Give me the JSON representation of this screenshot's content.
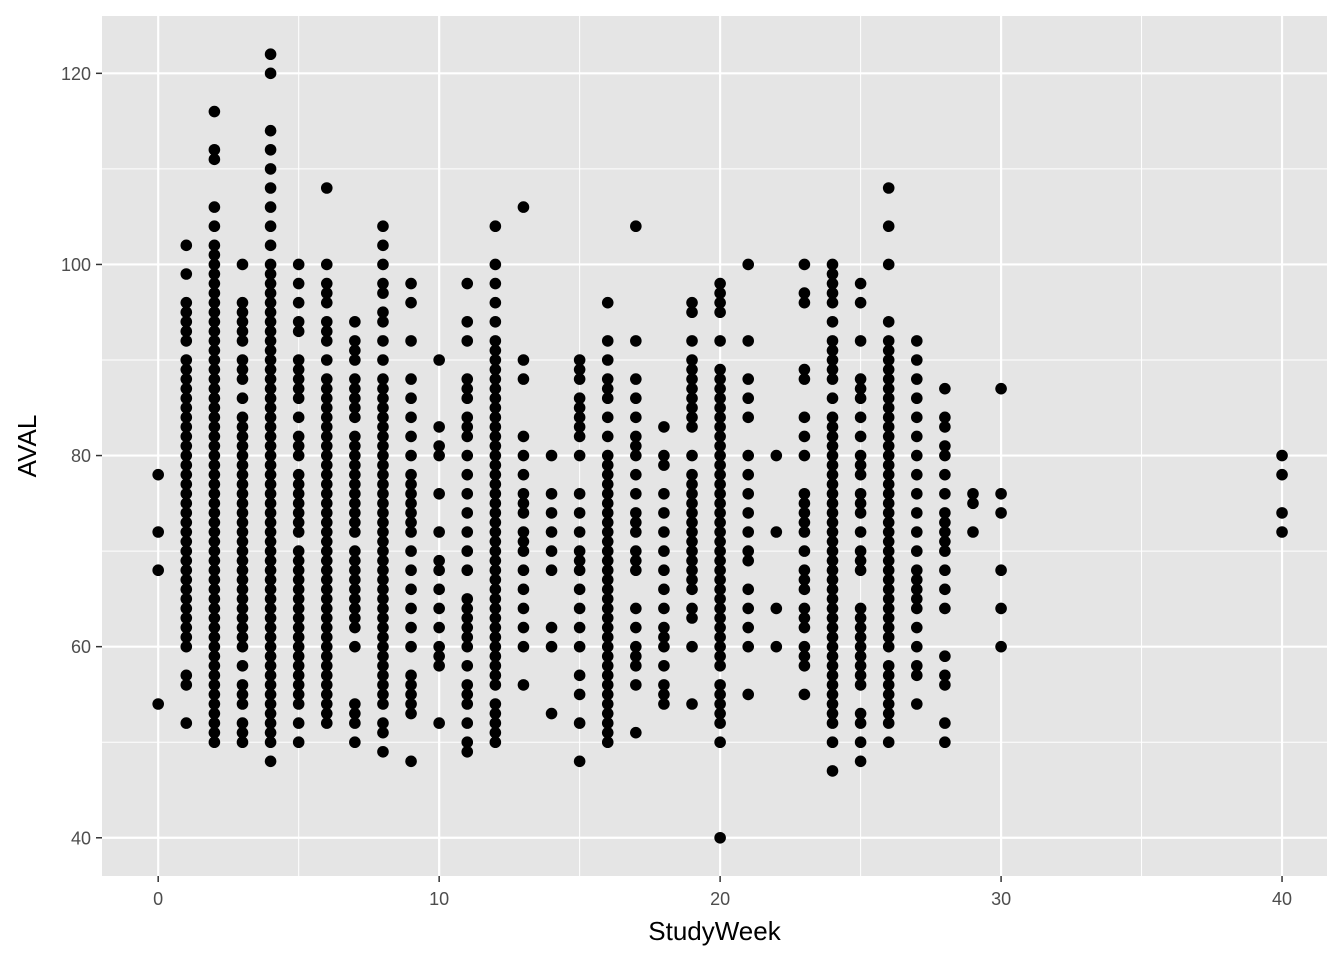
{
  "chart_data": {
    "type": "scatter",
    "xlabel": "StudyWeek",
    "ylabel": "AVAL",
    "xlim": [
      -2,
      41.6
    ],
    "ylim": [
      36,
      126
    ],
    "xticks": [
      0,
      10,
      20,
      30,
      40
    ],
    "yticks": [
      40,
      60,
      80,
      100,
      120
    ],
    "xtick_labels": [
      "0",
      "10",
      "20",
      "30",
      "40"
    ],
    "ytick_labels": [
      "40",
      "60",
      "80",
      "100",
      "120"
    ],
    "grid": true,
    "colors": {
      "panel": "#e5e5e5",
      "grid": "#ffffff",
      "point": "#000000"
    },
    "points": [
      {
        "x": 0,
        "y": [
          54,
          68,
          72,
          78
        ]
      },
      {
        "x": 1,
        "y": [
          52,
          56,
          57,
          60,
          61,
          62,
          63,
          64,
          65,
          66,
          67,
          68,
          69,
          70,
          71,
          72,
          73,
          74,
          75,
          76,
          77,
          78,
          79,
          80,
          81,
          82,
          83,
          84,
          85,
          86,
          87,
          88,
          89,
          90,
          92,
          93,
          94,
          95,
          96,
          99,
          102
        ]
      },
      {
        "x": 2,
        "y": [
          50,
          51,
          52,
          53,
          54,
          55,
          56,
          57,
          58,
          59,
          60,
          61,
          62,
          63,
          64,
          65,
          66,
          67,
          68,
          69,
          70,
          71,
          72,
          73,
          74,
          75,
          76,
          77,
          78,
          79,
          80,
          81,
          82,
          83,
          84,
          85,
          86,
          87,
          88,
          89,
          90,
          91,
          92,
          93,
          94,
          95,
          96,
          97,
          98,
          99,
          100,
          101,
          102,
          104,
          106,
          111,
          112,
          116
        ]
      },
      {
        "x": 3,
        "y": [
          50,
          51,
          52,
          54,
          55,
          56,
          58,
          60,
          61,
          62,
          63,
          64,
          65,
          66,
          67,
          68,
          69,
          70,
          71,
          72,
          73,
          74,
          75,
          76,
          77,
          78,
          79,
          80,
          81,
          82,
          83,
          84,
          86,
          88,
          89,
          90,
          92,
          93,
          94,
          95,
          96,
          100
        ]
      },
      {
        "x": 4,
        "y": [
          48,
          50,
          51,
          52,
          53,
          54,
          55,
          56,
          57,
          58,
          59,
          60,
          61,
          62,
          63,
          64,
          65,
          66,
          67,
          68,
          69,
          70,
          71,
          72,
          73,
          74,
          75,
          76,
          77,
          78,
          79,
          80,
          81,
          82,
          83,
          84,
          85,
          86,
          87,
          88,
          89,
          90,
          91,
          92,
          93,
          94,
          95,
          96,
          97,
          98,
          99,
          100,
          102,
          104,
          106,
          108,
          110,
          112,
          114,
          120,
          122
        ]
      },
      {
        "x": 5,
        "y": [
          50,
          52,
          54,
          55,
          56,
          57,
          58,
          59,
          60,
          61,
          62,
          63,
          64,
          65,
          66,
          67,
          68,
          69,
          70,
          72,
          73,
          74,
          75,
          76,
          77,
          78,
          80,
          81,
          82,
          84,
          86,
          87,
          88,
          89,
          90,
          93,
          94,
          96,
          98,
          100
        ]
      },
      {
        "x": 6,
        "y": [
          52,
          53,
          54,
          55,
          56,
          57,
          58,
          59,
          60,
          61,
          62,
          63,
          64,
          65,
          66,
          67,
          68,
          69,
          70,
          71,
          72,
          73,
          74,
          75,
          76,
          77,
          78,
          79,
          80,
          81,
          82,
          83,
          84,
          85,
          86,
          87,
          88,
          90,
          92,
          93,
          94,
          96,
          97,
          98,
          100,
          108
        ]
      },
      {
        "x": 7,
        "y": [
          50,
          52,
          53,
          54,
          60,
          62,
          63,
          64,
          65,
          66,
          67,
          68,
          69,
          70,
          72,
          73,
          74,
          75,
          76,
          77,
          78,
          79,
          80,
          81,
          82,
          84,
          85,
          86,
          87,
          88,
          90,
          91,
          92,
          94
        ]
      },
      {
        "x": 8,
        "y": [
          49,
          51,
          52,
          54,
          55,
          56,
          57,
          58,
          59,
          60,
          61,
          62,
          63,
          64,
          65,
          66,
          67,
          68,
          69,
          70,
          71,
          72,
          73,
          74,
          75,
          76,
          77,
          78,
          79,
          80,
          81,
          82,
          83,
          84,
          85,
          86,
          87,
          88,
          90,
          92,
          94,
          95,
          97,
          98,
          100,
          102,
          104
        ]
      },
      {
        "x": 9,
        "y": [
          48,
          53,
          54,
          55,
          56,
          57,
          60,
          62,
          64,
          66,
          68,
          70,
          72,
          73,
          74,
          75,
          76,
          77,
          78,
          80,
          82,
          84,
          86,
          88,
          92,
          96,
          98
        ]
      },
      {
        "x": 10,
        "y": [
          52,
          58,
          59,
          60,
          62,
          64,
          66,
          68,
          69,
          72,
          76,
          80,
          81,
          83,
          90
        ]
      },
      {
        "x": 11,
        "y": [
          49,
          50,
          52,
          54,
          55,
          56,
          58,
          60,
          61,
          62,
          63,
          64,
          65,
          68,
          70,
          72,
          74,
          76,
          78,
          80,
          82,
          83,
          84,
          86,
          87,
          88,
          92,
          94,
          98
        ]
      },
      {
        "x": 12,
        "y": [
          50,
          51,
          52,
          53,
          54,
          56,
          57,
          58,
          59,
          60,
          61,
          62,
          63,
          64,
          65,
          66,
          67,
          68,
          69,
          70,
          71,
          72,
          73,
          74,
          75,
          76,
          77,
          78,
          79,
          80,
          81,
          82,
          83,
          84,
          85,
          86,
          87,
          88,
          89,
          90,
          91,
          92,
          94,
          96,
          98,
          100,
          104
        ]
      },
      {
        "x": 13,
        "y": [
          56,
          60,
          62,
          64,
          66,
          68,
          70,
          71,
          72,
          74,
          75,
          76,
          78,
          80,
          82,
          88,
          90,
          106
        ]
      },
      {
        "x": 14,
        "y": [
          53,
          60,
          62,
          68,
          70,
          72,
          74,
          76,
          80
        ]
      },
      {
        "x": 15,
        "y": [
          48,
          52,
          55,
          57,
          60,
          62,
          64,
          66,
          68,
          69,
          70,
          72,
          74,
          76,
          80,
          82,
          83,
          84,
          85,
          86,
          88,
          89,
          90
        ]
      },
      {
        "x": 16,
        "y": [
          50,
          51,
          52,
          53,
          54,
          55,
          56,
          57,
          58,
          59,
          60,
          61,
          62,
          63,
          64,
          65,
          66,
          67,
          68,
          69,
          70,
          71,
          72,
          73,
          74,
          75,
          76,
          77,
          78,
          79,
          80,
          82,
          84,
          86,
          87,
          88,
          90,
          92,
          96
        ]
      },
      {
        "x": 17,
        "y": [
          51,
          56,
          58,
          59,
          60,
          62,
          64,
          68,
          69,
          70,
          72,
          73,
          74,
          76,
          78,
          80,
          81,
          82,
          84,
          86,
          88,
          92,
          104
        ]
      },
      {
        "x": 18,
        "y": [
          54,
          55,
          56,
          58,
          60,
          61,
          62,
          64,
          66,
          68,
          70,
          72,
          74,
          76,
          79,
          80,
          83
        ]
      },
      {
        "x": 19,
        "y": [
          54,
          60,
          63,
          64,
          66,
          67,
          68,
          69,
          70,
          71,
          72,
          73,
          74,
          75,
          76,
          77,
          78,
          80,
          83,
          84,
          85,
          86,
          87,
          88,
          89,
          90,
          92,
          95,
          96
        ]
      },
      {
        "x": 20,
        "y": [
          40,
          50,
          52,
          53,
          54,
          55,
          56,
          58,
          59,
          60,
          61,
          62,
          63,
          64,
          65,
          66,
          67,
          68,
          69,
          70,
          71,
          72,
          73,
          74,
          75,
          76,
          77,
          78,
          79,
          80,
          81,
          82,
          83,
          84,
          85,
          86,
          87,
          88,
          89,
          92,
          95,
          96,
          97,
          98
        ]
      },
      {
        "x": 21,
        "y": [
          55,
          60,
          62,
          64,
          66,
          69,
          70,
          72,
          74,
          76,
          78,
          80,
          84,
          86,
          88,
          92,
          100
        ]
      },
      {
        "x": 22,
        "y": [
          60,
          64,
          72,
          80
        ]
      },
      {
        "x": 23,
        "y": [
          55,
          58,
          59,
          60,
          62,
          63,
          64,
          66,
          67,
          68,
          70,
          72,
          73,
          74,
          75,
          76,
          80,
          82,
          84,
          88,
          89,
          96,
          97,
          100
        ]
      },
      {
        "x": 24,
        "y": [
          47,
          50,
          52,
          53,
          54,
          55,
          56,
          57,
          58,
          59,
          60,
          61,
          62,
          63,
          64,
          65,
          66,
          67,
          68,
          69,
          70,
          71,
          72,
          73,
          74,
          75,
          76,
          77,
          78,
          79,
          80,
          81,
          82,
          83,
          84,
          86,
          88,
          89,
          90,
          91,
          92,
          94,
          96,
          97,
          98,
          99,
          100
        ]
      },
      {
        "x": 25,
        "y": [
          48,
          50,
          52,
          53,
          56,
          57,
          58,
          59,
          60,
          61,
          62,
          63,
          64,
          68,
          69,
          70,
          72,
          74,
          75,
          76,
          78,
          79,
          80,
          82,
          84,
          86,
          87,
          88,
          92,
          96,
          98
        ]
      },
      {
        "x": 26,
        "y": [
          50,
          52,
          53,
          54,
          55,
          56,
          57,
          58,
          60,
          61,
          62,
          63,
          64,
          65,
          66,
          67,
          68,
          69,
          70,
          71,
          72,
          73,
          74,
          75,
          76,
          77,
          78,
          79,
          80,
          81,
          82,
          83,
          84,
          85,
          86,
          87,
          88,
          89,
          90,
          91,
          92,
          94,
          100,
          104,
          108
        ]
      },
      {
        "x": 27,
        "y": [
          54,
          57,
          58,
          60,
          62,
          64,
          65,
          66,
          67,
          68,
          70,
          72,
          74,
          76,
          78,
          80,
          82,
          84,
          86,
          88,
          90,
          92
        ]
      },
      {
        "x": 28,
        "y": [
          50,
          52,
          56,
          57,
          59,
          64,
          66,
          68,
          70,
          71,
          72,
          73,
          74,
          76,
          78,
          80,
          81,
          83,
          84,
          87
        ]
      },
      {
        "x": 29,
        "y": [
          72,
          75,
          76
        ]
      },
      {
        "x": 30,
        "y": [
          60,
          64,
          68,
          74,
          76,
          87
        ]
      },
      {
        "x": 40,
        "y": [
          72,
          74,
          78,
          80
        ]
      }
    ]
  }
}
